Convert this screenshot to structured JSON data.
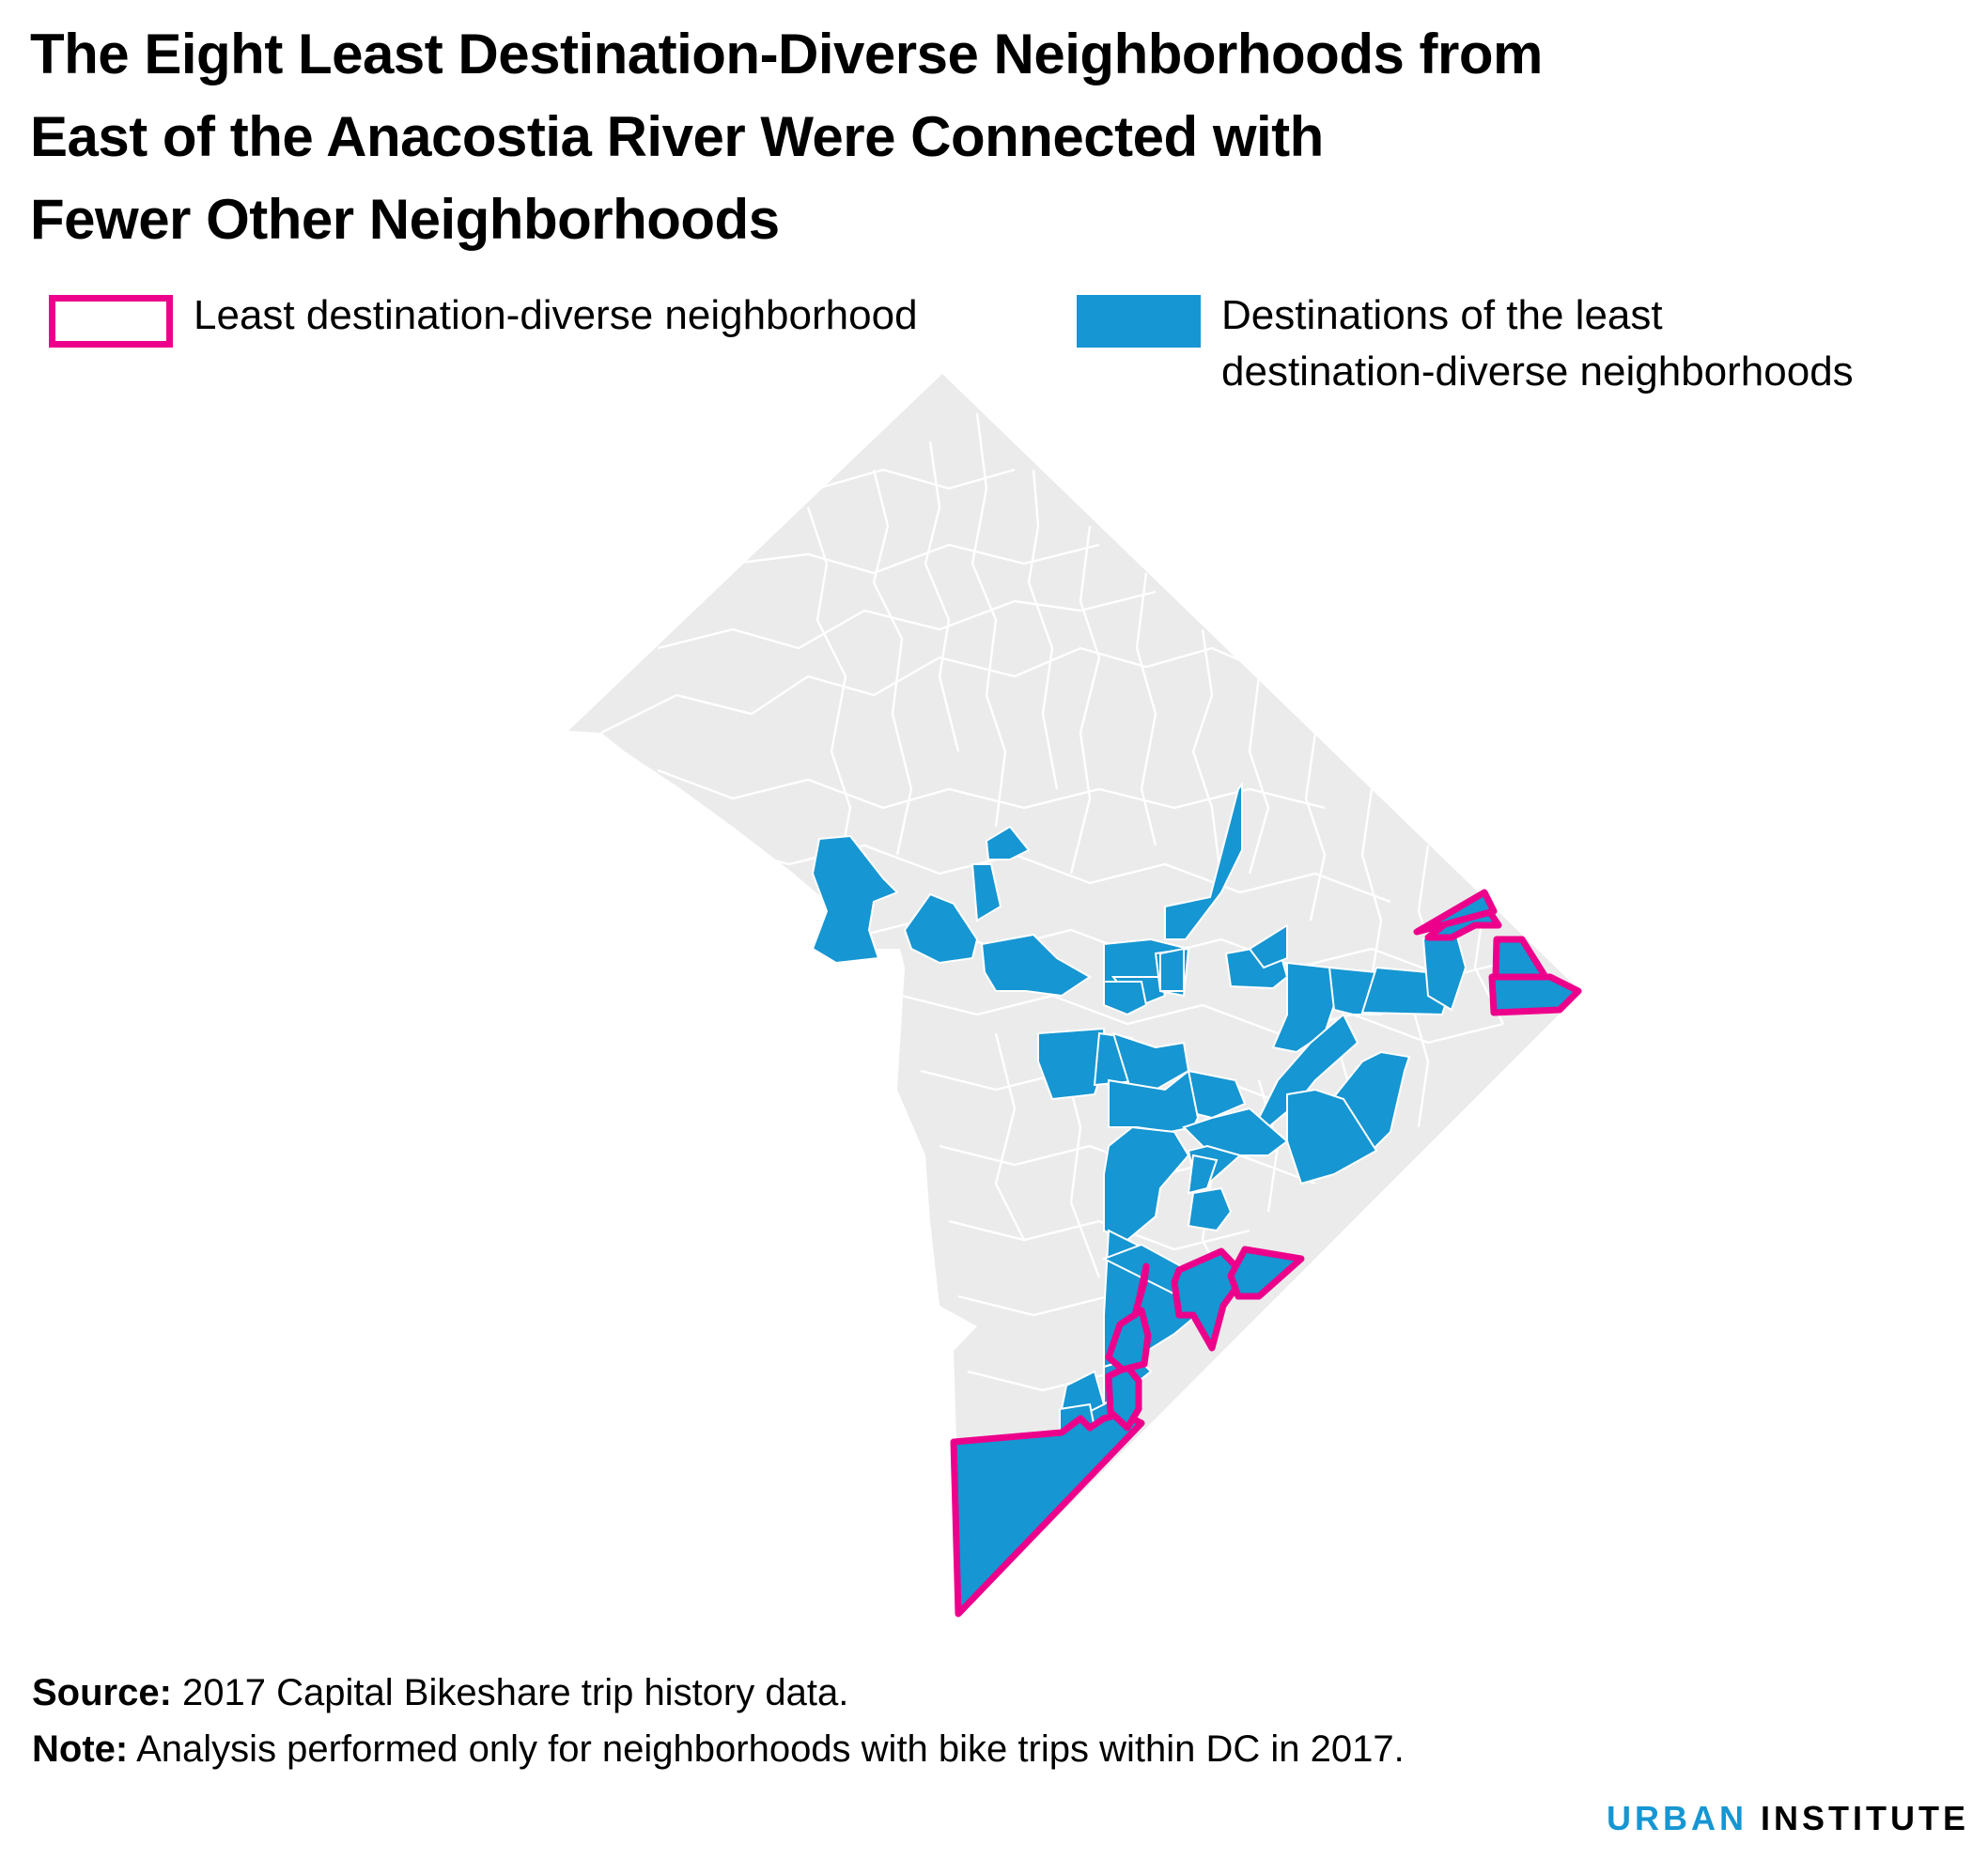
{
  "title_lines": [
    "The Eight Least Destination-Diverse Neighborhoods from",
    "East of the Anacostia River Were Connected with",
    "Fewer Other Neighborhoods"
  ],
  "legend": {
    "least": {
      "lines": [
        "Least destination-diverse neighborhood"
      ],
      "color": "#ec008b"
    },
    "destinations": {
      "lines": [
        "Destinations of the least",
        "destination-diverse neighborhoods"
      ],
      "color": "#1696d2"
    }
  },
  "map": {
    "base_color": "#ebebeb",
    "border_color": "#ffffff",
    "destination_color": "#1696d2",
    "least_outline_color": "#ec008b"
  },
  "footnotes": {
    "source_label": "Source:",
    "source_text": " 2017 Capital Bikeshare trip history data.",
    "note_label": "Note:",
    "note_text": " Analysis performed only for neighborhoods with bike trips within DC in 2017."
  },
  "logo": {
    "part1": "URBAN",
    "part2": " INSTITUTE"
  }
}
